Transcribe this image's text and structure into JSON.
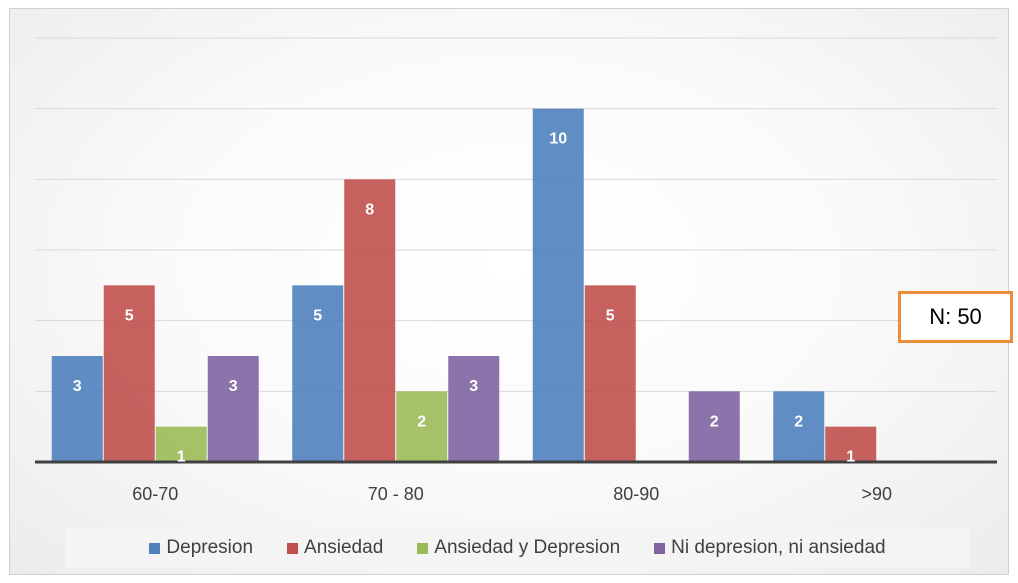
{
  "chart_data": {
    "type": "bar",
    "categories": [
      "60-70",
      "70 - 80",
      "80-90",
      ">90"
    ],
    "series": [
      {
        "name": "Depresion",
        "values": [
          3,
          5,
          10,
          2
        ],
        "color": "#4f81bd"
      },
      {
        "name": "Ansiedad",
        "values": [
          5,
          8,
          5,
          1
        ],
        "color": "#c0504d"
      },
      {
        "name": "Ansiedad y Depresion",
        "values": [
          1,
          2,
          0,
          0
        ],
        "color": "#9bbb59"
      },
      {
        "name": "Ni depresion, ni ansiedad",
        "values": [
          3,
          3,
          2,
          0
        ],
        "color": "#8064a2"
      }
    ],
    "title": "",
    "xlabel": "",
    "ylabel": "",
    "ylim": [
      0,
      12
    ],
    "gridlines": true,
    "legend_position": "bottom",
    "data_labels": true
  },
  "annotation": {
    "text": "N: 50",
    "border_color": "#ed8c3a"
  }
}
